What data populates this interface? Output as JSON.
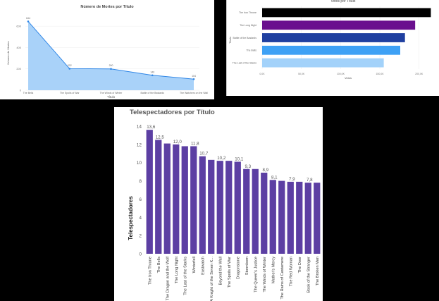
{
  "chart_data": [
    {
      "type": "area",
      "title": "Número de Mortes por Título",
      "xlabel": "Título",
      "ylabel": "Número de Mortes",
      "categories": [
        "The Bells",
        "The Spoils of War",
        "The Winds of Winter",
        "Battle of the Bastards",
        "The Watchers on the Wall"
      ],
      "values": [
        644,
        202,
        200,
        140,
        104
      ],
      "data_labels": [
        "644",
        "202",
        "200",
        "140",
        "104"
      ],
      "y_ticks": [
        "0",
        "200",
        "400",
        "600"
      ],
      "ylim": [
        0,
        700
      ],
      "color": "#2f86e6",
      "fill": "#a9d2f9",
      "grid": true
    },
    {
      "type": "bar",
      "orientation": "horizontal",
      "title": "Votos por Título",
      "xlabel": "Votos",
      "ylabel": "Título",
      "categories": [
        "The Iron Throne",
        "The Long Night",
        "Battle of the Bastards",
        "The Bells",
        "The Last of the Starks"
      ],
      "values": [
        215000,
        195000,
        182000,
        176000,
        155000
      ],
      "colors": [
        "#000000",
        "#6a0f8e",
        "#1f3fa0",
        "#3ea1f5",
        "#a3d2fa"
      ],
      "x_ticks": [
        "0,0K",
        "50,0K",
        "100,0K",
        "150,0K",
        "200,0K"
      ],
      "xlim": [
        0,
        220000
      ],
      "grid": true
    },
    {
      "type": "bar",
      "title": "Telespectadores por Título",
      "xlabel": "",
      "ylabel": "Telespectadores",
      "categories": [
        "The Iron Throne",
        "The Bells",
        "The Dragon and the Wolf",
        "The Long Night",
        "The Last of the Starks",
        "Winterfell",
        "Eastwatch",
        "A Knight of the Seven K...",
        "Beyond the Wall",
        "The Spoils of War",
        "Dragonstone",
        "Stormborn",
        "The Queen's Justice",
        "The Winds of Winter",
        "Mother's Mercy",
        "The Rains of Castamere",
        "The Red Woman",
        "The Door",
        "Book of the Stranger",
        "The Broken Man"
      ],
      "values": [
        13.6,
        12.5,
        12.1,
        12.0,
        11.8,
        11.8,
        10.7,
        10.3,
        10.2,
        10.2,
        10.1,
        9.3,
        9.3,
        8.9,
        8.1,
        8.0,
        7.9,
        7.9,
        7.8,
        7.8
      ],
      "data_labels": [
        "13,6",
        "12,5",
        "",
        "12,0",
        "",
        "11,8",
        "10,7",
        "",
        "10,2",
        "",
        "10,1",
        "9,3",
        "",
        "8,9",
        "8,1",
        "",
        "7,9",
        "",
        "7,8",
        ""
      ],
      "y_ticks": [
        "0",
        "2",
        "4",
        "6",
        "8",
        "10",
        "12",
        "14"
      ],
      "ylim": [
        0,
        14
      ],
      "color": "#5c3fa3",
      "grid": false
    }
  ]
}
